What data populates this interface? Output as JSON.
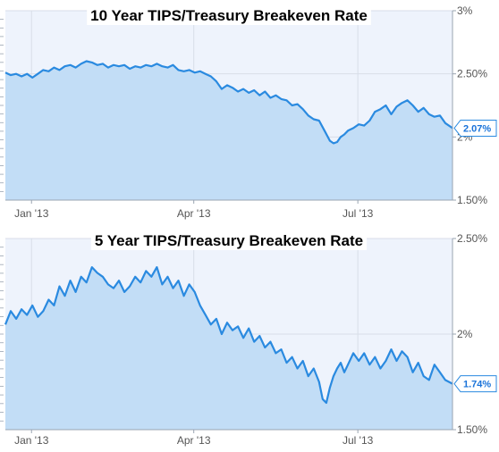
{
  "colors": {
    "line": "#2a8ae0",
    "area": "#c2ddf6",
    "plot_bg": "#eef3fc",
    "grid": "#d8dee8",
    "axis": "#9aa4b2",
    "label_border": "#2a8ae0"
  },
  "chart_data": [
    {
      "type": "area",
      "title": "10 Year TIPS/Treasury Breakeven Rate",
      "xlabel": "",
      "ylabel": "",
      "x_ticks": [
        {
          "label": "Jan '13",
          "x": 14.5
        },
        {
          "label": "Apr '13",
          "x": 104.5
        },
        {
          "label": "Jul '13",
          "x": 195.5
        }
      ],
      "xlim": [
        0,
        248
      ],
      "y_ticks": [
        "3%",
        "2.50%",
        "2%",
        "1.50%"
      ],
      "y_tick_values": [
        3.0,
        2.5,
        2.0,
        1.5
      ],
      "ylim": [
        1.5,
        3.0
      ],
      "last_value_label": "2.07%",
      "grid": true,
      "series": [
        {
          "x": [
            0,
            3,
            6,
            9,
            12,
            15,
            18,
            21,
            24,
            27,
            30,
            33,
            36,
            39,
            42,
            45,
            48,
            51,
            54,
            57,
            60,
            63,
            66,
            69,
            72,
            75,
            78,
            81,
            84,
            87,
            90,
            93,
            96,
            99,
            102,
            105,
            108,
            111,
            114,
            117,
            120,
            123,
            126,
            129,
            132,
            135,
            138,
            141,
            144,
            147,
            150,
            153,
            156,
            159,
            162,
            165,
            168,
            171,
            174,
            177,
            180,
            182,
            184,
            186,
            188,
            190,
            193,
            196,
            199,
            202,
            205,
            208,
            211,
            214,
            217,
            220,
            223,
            226,
            229,
            232,
            235,
            238,
            241,
            244,
            248
          ],
          "values": [
            2.51,
            2.49,
            2.5,
            2.48,
            2.5,
            2.47,
            2.5,
            2.53,
            2.52,
            2.55,
            2.53,
            2.56,
            2.57,
            2.55,
            2.58,
            2.6,
            2.59,
            2.57,
            2.58,
            2.55,
            2.57,
            2.56,
            2.57,
            2.54,
            2.56,
            2.55,
            2.57,
            2.56,
            2.58,
            2.56,
            2.55,
            2.57,
            2.53,
            2.52,
            2.53,
            2.51,
            2.52,
            2.5,
            2.48,
            2.44,
            2.38,
            2.41,
            2.39,
            2.36,
            2.38,
            2.35,
            2.37,
            2.33,
            2.36,
            2.31,
            2.33,
            2.3,
            2.29,
            2.25,
            2.26,
            2.22,
            2.17,
            2.14,
            2.13,
            2.05,
            1.97,
            1.95,
            1.96,
            2.0,
            2.02,
            2.05,
            2.07,
            2.1,
            2.09,
            2.13,
            2.2,
            2.22,
            2.25,
            2.18,
            2.24,
            2.27,
            2.29,
            2.25,
            2.2,
            2.23,
            2.18,
            2.16,
            2.17,
            2.11,
            2.07
          ]
        }
      ]
    },
    {
      "type": "area",
      "title": "5 Year TIPS/Treasury Breakeven Rate",
      "xlabel": "",
      "ylabel": "",
      "x_ticks": [
        {
          "label": "Jan '13",
          "x": 14.5
        },
        {
          "label": "Apr '13",
          "x": 104.5
        },
        {
          "label": "Jul '13",
          "x": 195.5
        }
      ],
      "xlim": [
        0,
        248
      ],
      "y_ticks": [
        "2.50%",
        "2%",
        "1.50%"
      ],
      "y_tick_values": [
        2.5,
        2.0,
        1.5
      ],
      "ylim": [
        1.5,
        2.5
      ],
      "last_value_label": "1.74%",
      "grid": true,
      "series": [
        {
          "x": [
            0,
            3,
            6,
            9,
            12,
            15,
            18,
            21,
            24,
            27,
            30,
            33,
            36,
            39,
            42,
            45,
            48,
            51,
            54,
            57,
            60,
            63,
            66,
            69,
            72,
            75,
            78,
            81,
            84,
            87,
            90,
            93,
            96,
            99,
            102,
            105,
            108,
            111,
            114,
            117,
            120,
            123,
            126,
            129,
            132,
            135,
            138,
            141,
            144,
            147,
            150,
            153,
            156,
            159,
            162,
            165,
            168,
            171,
            174,
            176,
            178,
            180,
            182,
            184,
            186,
            188,
            190,
            193,
            196,
            199,
            202,
            205,
            208,
            211,
            214,
            217,
            220,
            223,
            226,
            229,
            232,
            235,
            238,
            241,
            244,
            248
          ],
          "values": [
            2.05,
            2.12,
            2.08,
            2.13,
            2.1,
            2.15,
            2.09,
            2.12,
            2.18,
            2.15,
            2.25,
            2.2,
            2.28,
            2.22,
            2.3,
            2.27,
            2.35,
            2.32,
            2.3,
            2.26,
            2.24,
            2.28,
            2.22,
            2.25,
            2.3,
            2.27,
            2.33,
            2.3,
            2.35,
            2.26,
            2.3,
            2.24,
            2.28,
            2.2,
            2.26,
            2.22,
            2.15,
            2.1,
            2.05,
            2.08,
            2.0,
            2.06,
            2.02,
            2.04,
            1.98,
            2.03,
            1.96,
            1.99,
            1.93,
            1.96,
            1.9,
            1.92,
            1.85,
            1.88,
            1.82,
            1.86,
            1.78,
            1.82,
            1.75,
            1.66,
            1.64,
            1.72,
            1.78,
            1.82,
            1.85,
            1.8,
            1.84,
            1.9,
            1.86,
            1.9,
            1.84,
            1.88,
            1.82,
            1.86,
            1.92,
            1.86,
            1.91,
            1.88,
            1.8,
            1.85,
            1.78,
            1.76,
            1.84,
            1.8,
            1.76,
            1.74
          ]
        }
      ]
    }
  ]
}
